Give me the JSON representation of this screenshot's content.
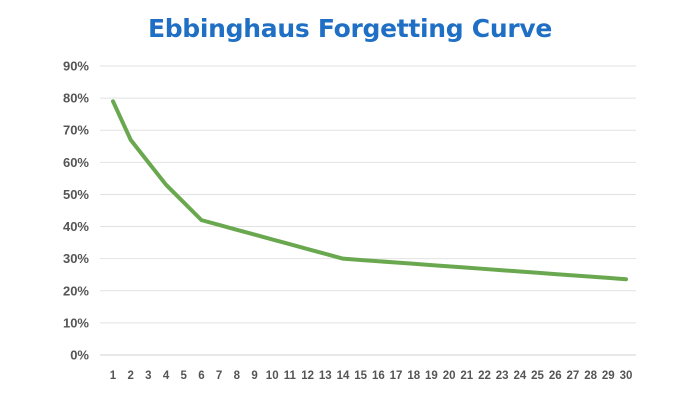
{
  "chart_data": {
    "type": "line",
    "title": "Ebbinghaus Forgetting Curve",
    "xlabel": "",
    "ylabel": "",
    "x": [
      1,
      2,
      3,
      4,
      5,
      6,
      7,
      8,
      9,
      10,
      11,
      12,
      13,
      14,
      15,
      16,
      17,
      18,
      19,
      20,
      21,
      22,
      23,
      24,
      25,
      26,
      27,
      28,
      29,
      30
    ],
    "y_ticks": [
      "0%",
      "10%",
      "20%",
      "30%",
      "40%",
      "50%",
      "60%",
      "70%",
      "80%",
      "90%"
    ],
    "ylim": [
      0,
      90
    ],
    "grid": true,
    "legend": "none",
    "series": [
      {
        "color": "#6aa84f",
        "values": [
          79,
          67,
          60,
          53,
          47.5,
          42,
          40.5,
          39,
          37.5,
          36,
          34.5,
          33,
          31.5,
          30,
          29.6,
          29.2,
          28.8,
          28.4,
          28,
          27.6,
          27.2,
          26.8,
          26.4,
          26,
          25.6,
          25.2,
          24.8,
          24.4,
          24,
          23.6
        ]
      }
    ]
  }
}
